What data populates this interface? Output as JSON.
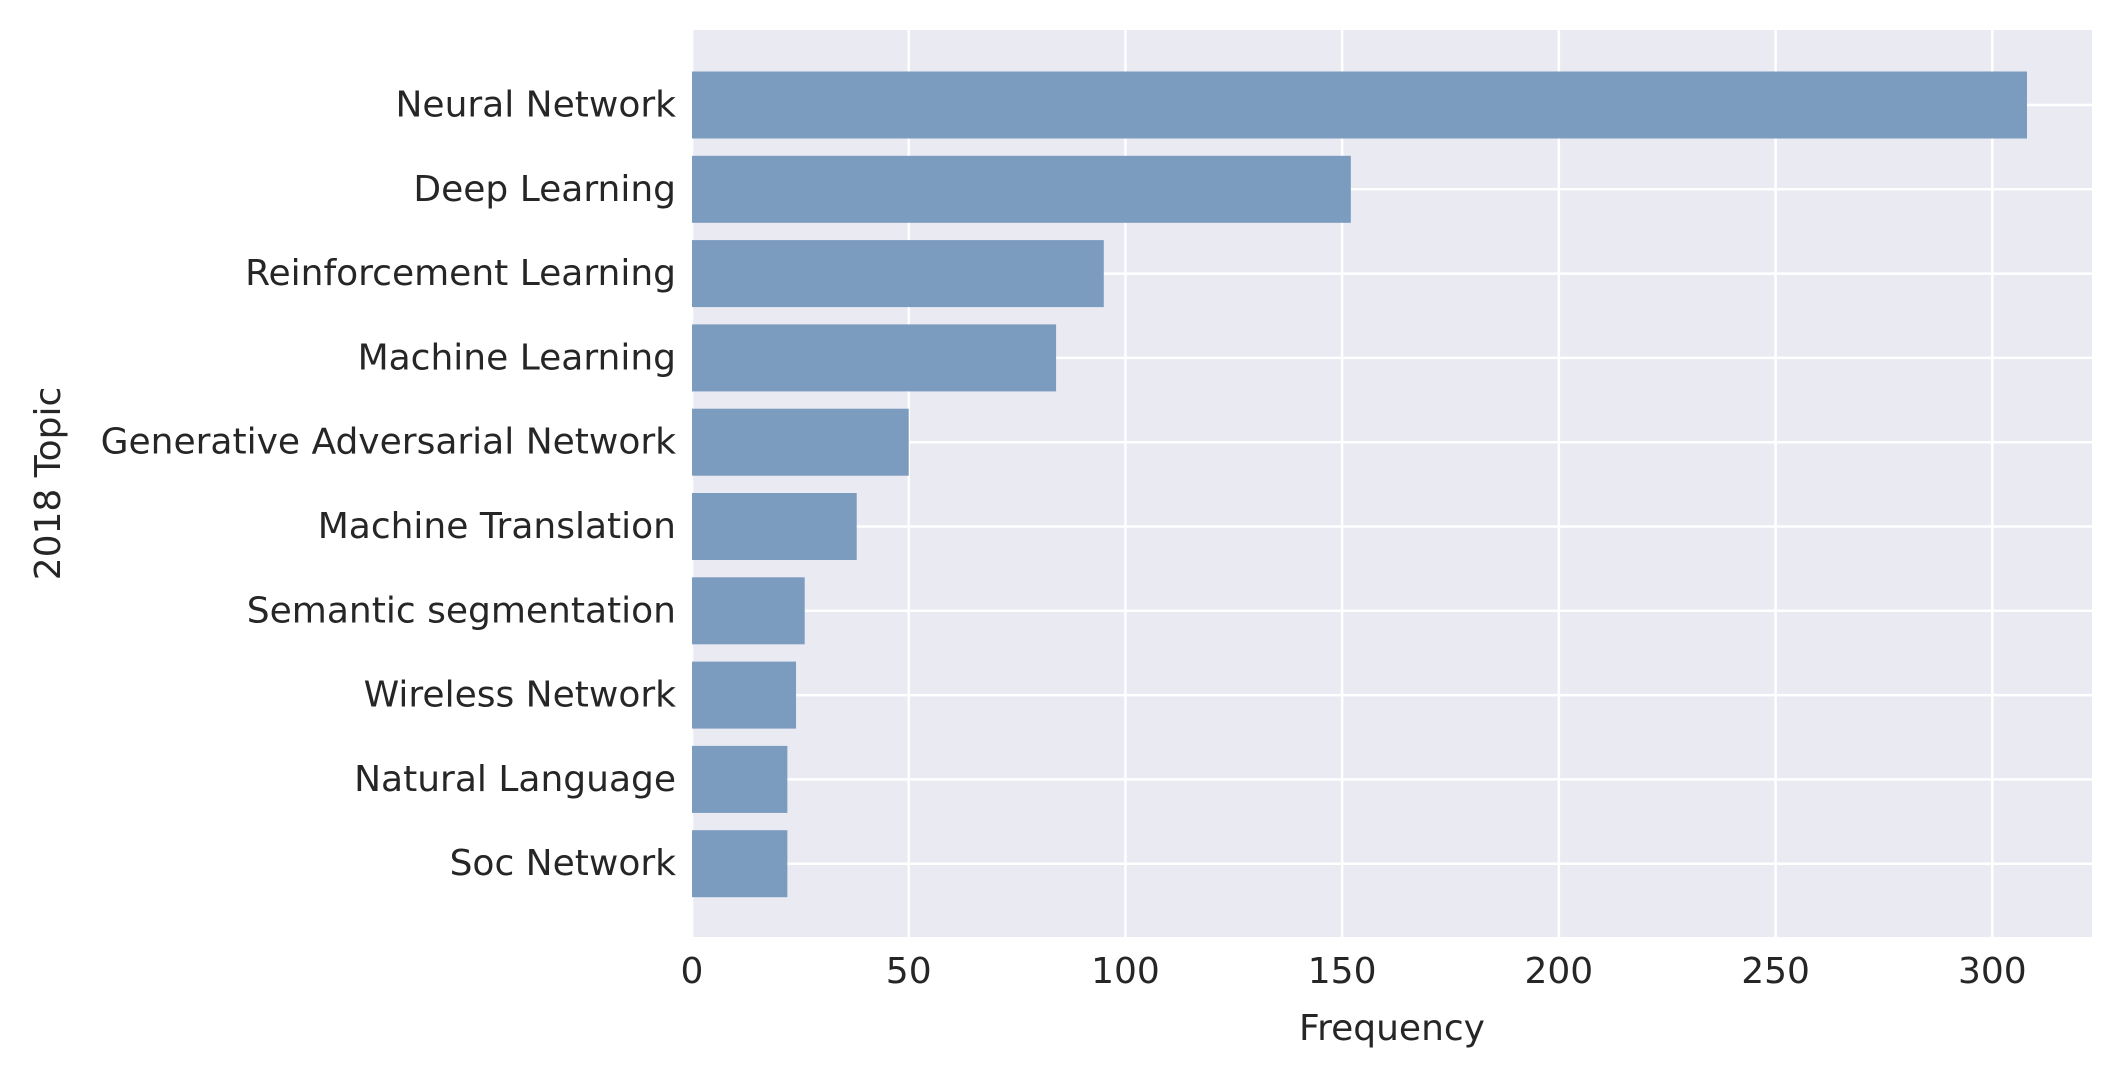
{
  "chart_data": {
    "type": "bar",
    "orientation": "horizontal",
    "categories": [
      "Neural Network",
      "Deep Learning",
      "Reinforcement Learning",
      "Machine Learning",
      "Generative Adversarial Network",
      "Machine Translation",
      "Semantic segmentation",
      "Wireless Network",
      "Natural Language",
      "Soc Network"
    ],
    "values": [
      308,
      152,
      95,
      84,
      50,
      38,
      26,
      24,
      22,
      22
    ],
    "xlabel": "Frequency",
    "ylabel": "2018 Topic",
    "xlim": [
      0,
      323
    ],
    "xticks": [
      0,
      50,
      100,
      150,
      200,
      250,
      300
    ],
    "grid": true,
    "colors": {
      "bar": "#7b9bbf",
      "background": "#eaeaf2",
      "grid": "#ffffff",
      "text": "#262626"
    }
  }
}
